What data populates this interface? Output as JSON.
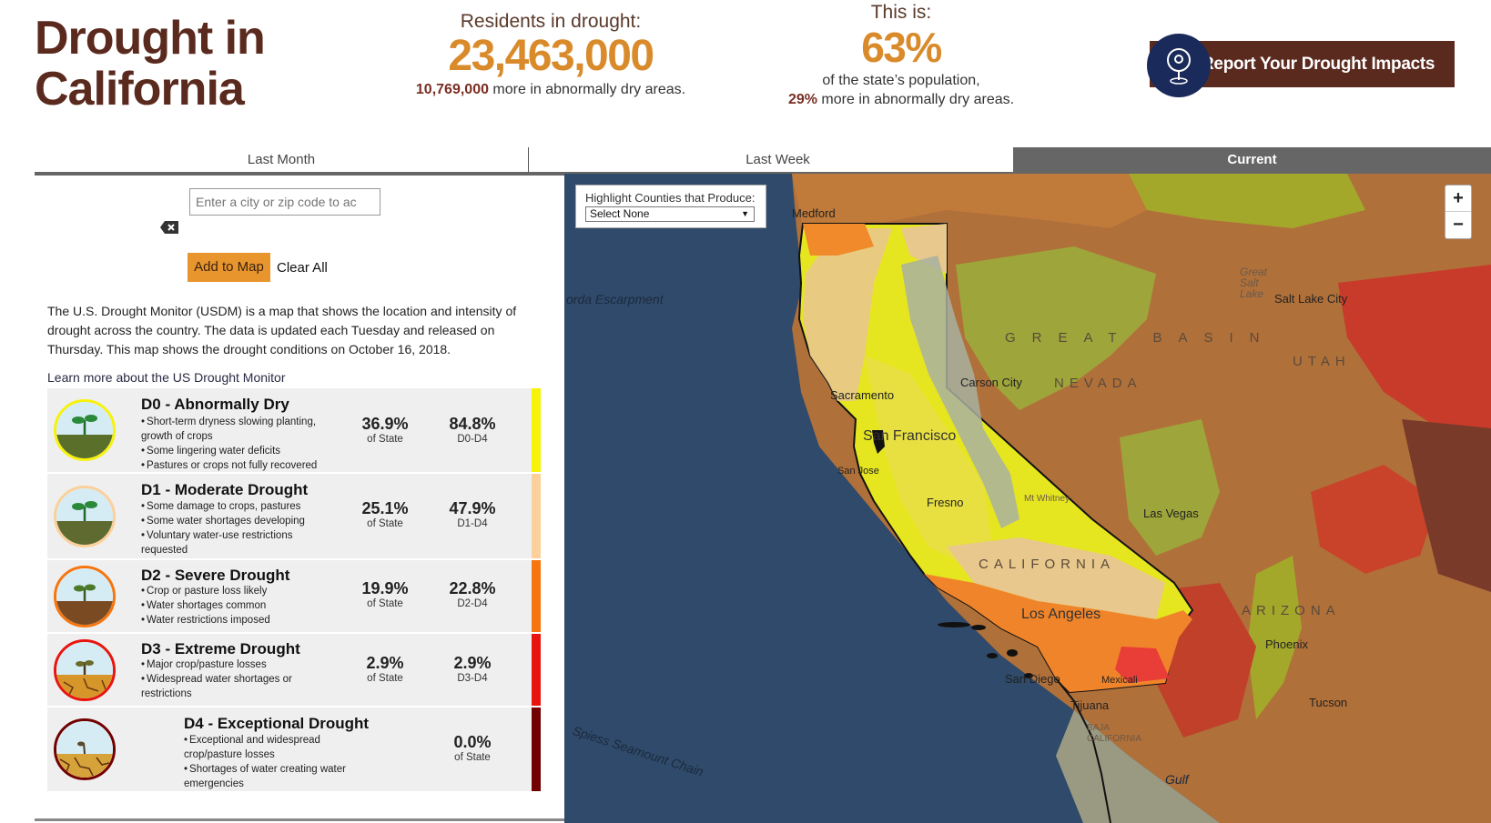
{
  "header": {
    "title_line1": "Drought in",
    "title_line2": "California",
    "residents_label": "Residents in drought:",
    "residents_value": "23,463,000",
    "residents_extra_value": "10,769,000",
    "residents_extra_text": " more in abnormally dry areas.",
    "this_is_label": "This is:",
    "percent_value": "63%",
    "percent_text": "of the state’s population,",
    "percent_extra_value": "29%",
    "percent_extra_text": " more in abnormally dry areas.",
    "report_button": "Report Your Drought Impacts"
  },
  "tabs": [
    "Last Month",
    "Last Week",
    "Current"
  ],
  "search": {
    "placeholder": "Enter a city or zip code to ac",
    "add_button": "Add to Map",
    "clear_all": "Clear All"
  },
  "intro": "The U.S. Drought Monitor (USDM) is a map that shows the location and intensity of drought across the country. The data is updated each Tuesday and released on Thursday. This map shows the drought conditions on October 16, 2018.",
  "learn_more": "Learn more about the US Drought Monitor",
  "drought_levels": [
    {
      "name": "D0 - Abnormally Dry",
      "bullets": [
        "Short-term dryness slowing planting, growth of crops",
        "Some lingering water deficits",
        "Pastures or crops not fully recovered"
      ],
      "state_pct": "36.9%",
      "state_lbl": "of State",
      "cum_pct": "84.8%",
      "cum_lbl": "D0-D4",
      "color": "#f7f20a"
    },
    {
      "name": "D1 - Moderate Drought",
      "bullets": [
        "Some damage to crops, pastures",
        "Some water shortages developing",
        "Voluntary water-use restrictions requested"
      ],
      "state_pct": "25.1%",
      "state_lbl": "of State",
      "cum_pct": "47.9%",
      "cum_lbl": "D1-D4",
      "color": "#fbd09a"
    },
    {
      "name": "D2 - Severe Drought",
      "bullets": [
        "Crop or pasture loss likely",
        "Water shortages common",
        "Water restrictions imposed"
      ],
      "state_pct": "19.9%",
      "state_lbl": "of State",
      "cum_pct": "22.8%",
      "cum_lbl": "D2-D4",
      "color": "#f7750e"
    },
    {
      "name": "D3 - Extreme Drought",
      "bullets": [
        "Major crop/pasture losses",
        "Widespread water shortages or restrictions"
      ],
      "state_pct": "2.9%",
      "state_lbl": "of State",
      "cum_pct": "2.9%",
      "cum_lbl": "D3-D4",
      "color": "#e8150e"
    },
    {
      "name": "D4 - Exceptional Drought",
      "bullets": [
        "Exceptional and widespread crop/pasture losses",
        "Shortages of water creating water emergencies"
      ],
      "state_pct": "0.0%",
      "state_lbl": "of State",
      "color": "#730000"
    }
  ],
  "map": {
    "highlight_label": "Highlight Counties that Produce:",
    "highlight_value": "Select None",
    "zoom_in": "+",
    "zoom_out": "−",
    "labels": {
      "medford": "Medford",
      "escarpment": "orda Escarpment",
      "carson": "Carson City",
      "slc": "Salt Lake City",
      "great_salt": "Great Salt Lake",
      "sacramento": "Sacramento",
      "sf": "San Francisco",
      "sanjose": "San Jose",
      "fresno": "Fresno",
      "whitney": "Mt Whitney",
      "nevada": "NEVADA",
      "great_basin": "GREAT BASIN",
      "utah": "UTAH",
      "lasvegas": "Las Vegas",
      "california": "CALIFORNIA",
      "la": "Los Angeles",
      "arizona": "ARIZONA",
      "phoenix": "Phoenix",
      "sandiego": "San Diego",
      "mexicali": "Mexicali",
      "tijuana": "Tijuana",
      "baja": "BAJA CALIFORNIA",
      "tucson": "Tucson",
      "spiess": "Spiess Seamount Chain",
      "gulf": "Gulf"
    }
  }
}
